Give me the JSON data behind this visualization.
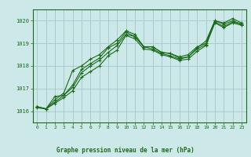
{
  "title": "Graphe pression niveau de la mer (hPa)",
  "bg_color": "#cce8e8",
  "grid_color": "#aacccc",
  "line_color": "#1a6b1a",
  "xlim": [
    -0.5,
    23.5
  ],
  "ylim": [
    1015.5,
    1020.5
  ],
  "yticks": [
    1016,
    1017,
    1018,
    1019,
    1020
  ],
  "xticks": [
    0,
    1,
    2,
    3,
    4,
    5,
    6,
    7,
    8,
    9,
    10,
    11,
    12,
    13,
    14,
    15,
    16,
    17,
    18,
    19,
    20,
    21,
    22,
    23
  ],
  "series": [
    {
      "x": [
        0,
        1,
        2,
        3,
        4,
        5,
        6,
        7,
        8,
        9,
        10,
        11,
        12,
        13,
        14,
        15,
        16,
        17,
        18,
        19,
        20,
        21,
        22,
        23
      ],
      "y": [
        1016.2,
        1016.1,
        1016.5,
        1016.8,
        1017.8,
        1018.0,
        1018.3,
        1018.5,
        1018.85,
        1019.15,
        1019.55,
        1019.4,
        1018.85,
        1018.85,
        1018.6,
        1018.55,
        1018.35,
        1018.4,
        1018.8,
        1019.1,
        1020.0,
        1019.9,
        1020.1,
        1019.9
      ]
    },
    {
      "x": [
        0,
        1,
        2,
        3,
        4,
        5,
        6,
        7,
        8,
        9,
        10,
        11,
        12,
        13,
        14,
        15,
        16,
        17,
        18,
        19,
        20,
        21,
        22,
        23
      ],
      "y": [
        1016.2,
        1016.1,
        1016.65,
        1016.7,
        1017.15,
        1017.85,
        1018.1,
        1018.35,
        1018.8,
        1019.0,
        1019.5,
        1019.3,
        1018.85,
        1018.85,
        1018.6,
        1018.55,
        1018.4,
        1018.5,
        1018.85,
        1019.0,
        1020.0,
        1019.85,
        1020.0,
        1019.85
      ]
    },
    {
      "x": [
        0,
        1,
        2,
        3,
        4,
        5,
        6,
        7,
        8,
        9,
        10,
        11,
        12,
        13,
        14,
        15,
        16,
        17,
        18,
        19,
        20,
        21,
        22,
        23
      ],
      "y": [
        1016.2,
        1016.1,
        1016.4,
        1016.7,
        1017.05,
        1017.7,
        1018.0,
        1018.25,
        1018.6,
        1018.9,
        1019.4,
        1019.3,
        1018.85,
        1018.75,
        1018.55,
        1018.45,
        1018.3,
        1018.4,
        1018.75,
        1018.95,
        1019.95,
        1019.75,
        1019.95,
        1019.85
      ]
    },
    {
      "x": [
        0,
        1,
        2,
        3,
        4,
        5,
        6,
        7,
        8,
        9,
        10,
        11,
        12,
        13,
        14,
        15,
        16,
        17,
        18,
        19,
        20,
        21,
        22,
        23
      ],
      "y": [
        1016.15,
        1016.1,
        1016.35,
        1016.6,
        1016.9,
        1017.5,
        1017.75,
        1018.0,
        1018.45,
        1018.7,
        1019.35,
        1019.2,
        1018.75,
        1018.7,
        1018.5,
        1018.4,
        1018.25,
        1018.3,
        1018.65,
        1018.9,
        1019.9,
        1019.7,
        1019.9,
        1019.8
      ]
    }
  ]
}
